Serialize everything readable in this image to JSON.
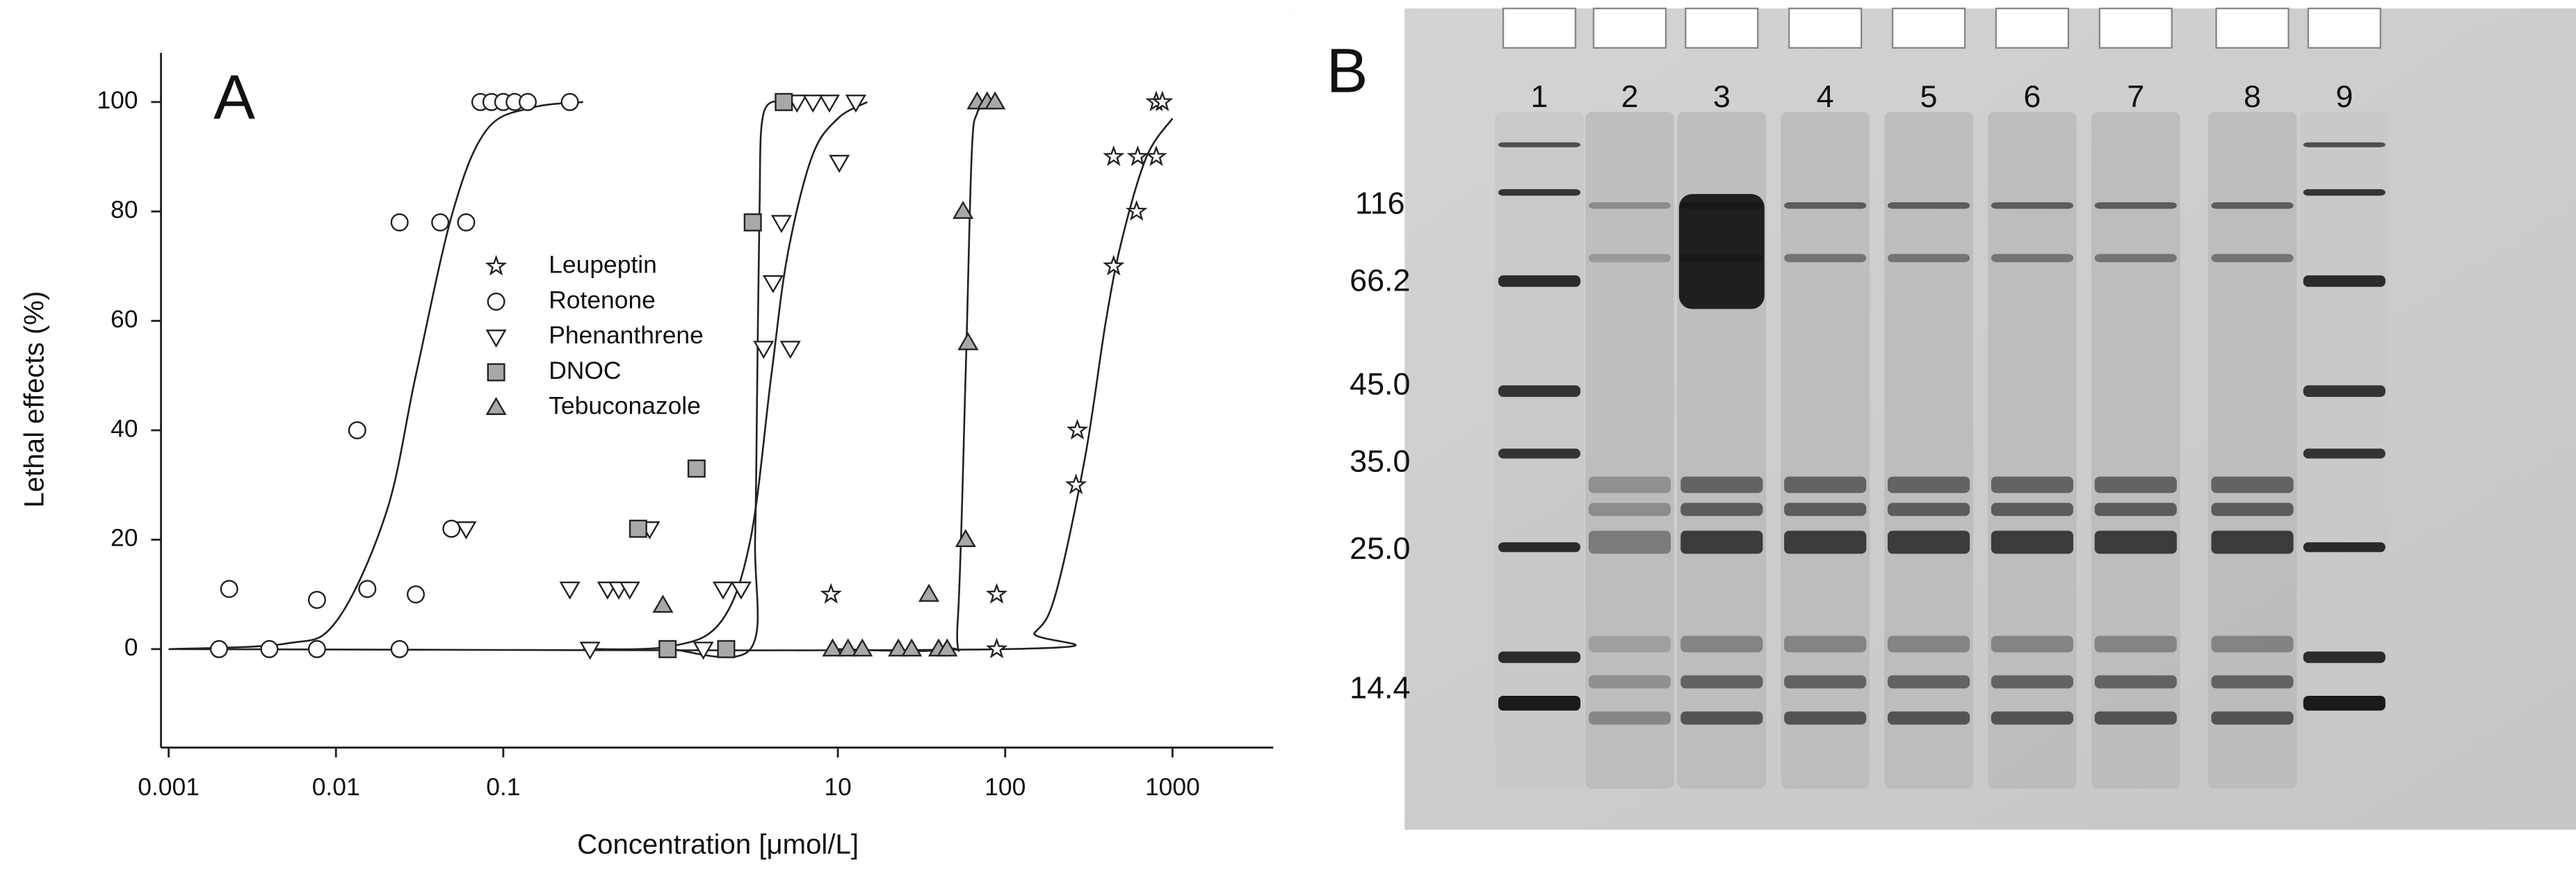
{
  "chart_data": {
    "type": "scatter",
    "panel_label": "A",
    "xlabel": "Concentration [μmol/L]",
    "ylabel": "Lethal effects (%)",
    "xscale": "log",
    "xlim": [
      0.0009,
      4000
    ],
    "xticks": [
      0.001,
      0.01,
      0.1,
      10,
      100,
      1000
    ],
    "ylim": [
      -18,
      109
    ],
    "yticks": [
      0,
      20,
      40,
      60,
      80,
      100
    ],
    "series": [
      {
        "name": "Leupeptin",
        "marker": "star",
        "color": "#ffffff",
        "x": [
          9.1,
          89,
          89,
          265,
          270,
          445,
          445,
          610,
          620,
          800,
          800,
          870
        ],
        "values": [
          10,
          10,
          0,
          30,
          40,
          90,
          70,
          80,
          90,
          90,
          100,
          100
        ],
        "fit": {
          "x": [
            0.001,
            100,
            150,
            200,
            300,
            400,
            500,
            700,
            1000
          ],
          "values": [
            0,
            0,
            3,
            10,
            35,
            60,
            75,
            90,
            97
          ]
        }
      },
      {
        "name": "Rotenone",
        "marker": "circle",
        "color": "#ffffff",
        "x": [
          0.002,
          0.0023,
          0.004,
          0.0077,
          0.0077,
          0.0134,
          0.0154,
          0.024,
          0.024,
          0.03,
          0.042,
          0.049,
          0.06,
          0.073,
          0.085,
          0.1,
          0.117,
          0.14,
          0.25
        ],
        "values": [
          0,
          11,
          0,
          9,
          0,
          40,
          11,
          0,
          78,
          10,
          78,
          22,
          78,
          100,
          100,
          100,
          100,
          100,
          100
        ],
        "fit": {
          "x": [
            0.001,
            0.005,
            0.01,
            0.02,
            0.03,
            0.05,
            0.08,
            0.15,
            0.3
          ],
          "values": [
            0,
            1,
            5,
            25,
            50,
            80,
            95,
            99,
            100
          ]
        }
      },
      {
        "name": "Phenanthrene",
        "marker": "triangle-down",
        "color": "#ffffff",
        "x": [
          0.06,
          0.25,
          0.33,
          0.42,
          0.49,
          0.57,
          0.75,
          1.57,
          2.06,
          2.64,
          3.6,
          4.1,
          4.6,
          5.2,
          5.7,
          7.1,
          8.9,
          10.2,
          12.8
        ],
        "values": [
          22,
          11,
          0,
          11,
          11,
          11,
          22,
          0,
          11,
          11,
          55,
          67,
          78,
          55,
          100,
          100,
          100,
          89,
          100
        ],
        "fit": {
          "x": [
            0.3,
            1,
            2,
            3,
            4,
            5,
            7,
            10,
            15
          ],
          "values": [
            0,
            0.5,
            5,
            20,
            50,
            72,
            90,
            97,
            100
          ]
        }
      },
      {
        "name": "DNOC",
        "marker": "square",
        "color": "#a8a8a8",
        "x": [
          0.64,
          0.96,
          1.43,
          2.15,
          3.1,
          4.75
        ],
        "values": [
          22,
          0,
          33,
          0,
          78,
          100
        ],
        "fit": {
          "x": [
            1,
            3,
            3.2,
            3.3,
            3.4,
            3.6,
            5
          ],
          "values": [
            0,
            0,
            20,
            50,
            80,
            98,
            100
          ]
        }
      },
      {
        "name": "Tebuconazole",
        "marker": "triangle-up",
        "color": "#a8a8a8",
        "x": [
          0.9,
          9.3,
          11.5,
          14,
          23,
          27.6,
          35,
          40,
          45,
          58,
          56,
          60,
          68,
          78,
          87
        ],
        "values": [
          8,
          0,
          0,
          0,
          0,
          0,
          10,
          0,
          0,
          20,
          80,
          56,
          100,
          100,
          100
        ],
        "fit": {
          "x": [
            10,
            45,
            52,
            58,
            63,
            68,
            80
          ],
          "values": [
            0,
            0,
            5,
            50,
            90,
            98,
            100
          ]
        }
      }
    ]
  },
  "gel": {
    "label": "B",
    "lanes": [
      "1",
      "2",
      "3",
      "4",
      "5",
      "6",
      "7",
      "8",
      "9"
    ],
    "markers": [
      "116",
      "66.2",
      "45.0",
      "35.0",
      "25.0",
      "14.4"
    ]
  }
}
